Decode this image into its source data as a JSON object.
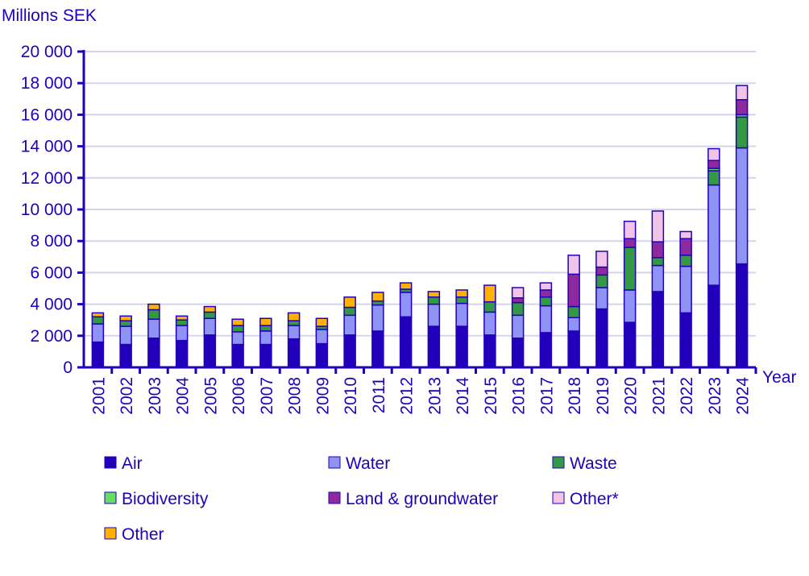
{
  "chart_data": {
    "type": "bar",
    "stacked": true,
    "ylabel": "Millions SEK",
    "xlabel": "Year",
    "ylim": [
      0,
      20000
    ],
    "yticks": [
      0,
      2000,
      4000,
      6000,
      8000,
      10000,
      12000,
      14000,
      16000,
      18000,
      20000
    ],
    "ytick_labels": [
      "0",
      "2 000",
      "4 000",
      "6 000",
      "8 000",
      "10 000",
      "12 000",
      "14 000",
      "16 000",
      "18 000",
      "20 000"
    ],
    "grid": true,
    "legend_position": "bottom",
    "categories": [
      "2001",
      "2002",
      "2003",
      "2004",
      "2005",
      "2006",
      "2007",
      "2008",
      "2009",
      "2010",
      "2011",
      "2012",
      "2013",
      "2014",
      "2015",
      "2016",
      "2017",
      "2018",
      "2019",
      "2020",
      "2021",
      "2022",
      "2023",
      "2024"
    ],
    "series": [
      {
        "name": "Air",
        "color": "#2200bb",
        "values": [
          1600,
          1450,
          1850,
          1700,
          2050,
          1450,
          1450,
          1800,
          1500,
          2050,
          2300,
          3200,
          2600,
          2600,
          2050,
          1850,
          2200,
          2300,
          3700,
          2850,
          4800,
          3450,
          5200,
          6550
        ]
      },
      {
        "name": "Water",
        "color": "#8f93f5",
        "values": [
          1150,
          1150,
          1200,
          950,
          1050,
          800,
          850,
          850,
          900,
          1250,
          1650,
          1550,
          1400,
          1450,
          1450,
          1450,
          1700,
          850,
          1350,
          2050,
          1650,
          2950,
          6350,
          7350
        ]
      },
      {
        "name": "Waste",
        "color": "#339944",
        "values": [
          450,
          350,
          600,
          350,
          400,
          400,
          350,
          300,
          200,
          500,
          250,
          200,
          450,
          400,
          650,
          800,
          550,
          700,
          800,
          2700,
          500,
          700,
          900,
          1950
        ]
      },
      {
        "name": "Biodiversity",
        "color": "#66dd66",
        "values": [
          0,
          0,
          0,
          0,
          0,
          0,
          0,
          0,
          0,
          0,
          0,
          0,
          0,
          0,
          0,
          0,
          0,
          0,
          0,
          0,
          0,
          0,
          150,
          150
        ]
      },
      {
        "name": "Land & groundwater",
        "color": "#8e2a9e",
        "values": [
          0,
          0,
          0,
          0,
          0,
          0,
          0,
          0,
          0,
          0,
          0,
          0,
          0,
          0,
          0,
          300,
          450,
          2050,
          500,
          550,
          1000,
          1050,
          500,
          950
        ]
      },
      {
        "name": "Other*",
        "color": "#f0c4e8",
        "values": [
          0,
          0,
          0,
          0,
          0,
          0,
          0,
          0,
          0,
          0,
          0,
          0,
          0,
          0,
          0,
          650,
          450,
          1200,
          1000,
          1100,
          1950,
          450,
          750,
          900
        ]
      },
      {
        "name": "Other",
        "color": "#ffb300",
        "values": [
          250,
          300,
          350,
          250,
          350,
          400,
          450,
          500,
          500,
          650,
          550,
          400,
          350,
          450,
          1050,
          0,
          0,
          0,
          0,
          0,
          0,
          0,
          0,
          0
        ]
      }
    ]
  }
}
